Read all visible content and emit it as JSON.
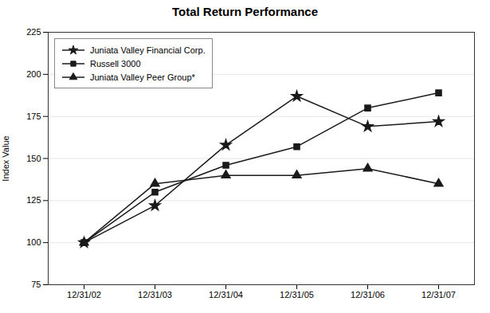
{
  "chart_data": {
    "type": "line",
    "title": "Total Return Performance",
    "ylabel": "Index Value",
    "categories": [
      "12/31/02",
      "12/31/03",
      "12/31/04",
      "12/31/05",
      "12/31/06",
      "12/31/07"
    ],
    "series": [
      {
        "name": "Juniata Valley Financial Corp.",
        "color": "#1a1a1a",
        "marker": "star",
        "values": [
          100,
          122,
          158,
          187,
          169,
          172
        ]
      },
      {
        "name": "Russell 3000",
        "color": "#1a1a1a",
        "marker": "square",
        "values": [
          100,
          130,
          146,
          157,
          180,
          189
        ]
      },
      {
        "name": "Juniata Valley Peer Group*",
        "color": "#1a1a1a",
        "marker": "triangle",
        "values": [
          100,
          135,
          140,
          140,
          144,
          135
        ]
      }
    ],
    "ylim": [
      75,
      225
    ],
    "yticks": [
      75,
      100,
      125,
      150,
      175,
      200,
      225
    ],
    "grid": true,
    "legend": "upper left"
  }
}
